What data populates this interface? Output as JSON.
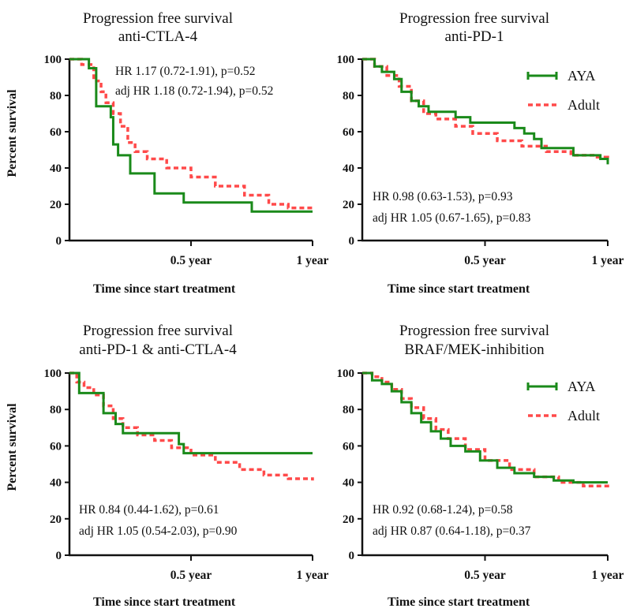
{
  "figure": {
    "y_axis_label": "Percent survival",
    "x_axis_label": "Time since start treatment",
    "legend": {
      "aya_label": "AYA",
      "adult_label": "Adult"
    },
    "colors": {
      "aya": "#1a8a1a",
      "adult": "#ff4a4a",
      "axis": "#111111"
    }
  },
  "panels": [
    {
      "title_line1": "Progression free survival",
      "title_line2": "anti-CTLA-4",
      "annotation_line1": "HR 1.17 (0.72-1.91), p=0.52",
      "annotation_line2": "adj  HR 1.18 (0.72-1.94), p=0.52"
    },
    {
      "title_line1": "Progression free survival",
      "title_line2": "anti-PD-1",
      "annotation_line1": "HR 0.98 (0.63-1.53), p=0.93",
      "annotation_line2": "adj  HR 1.05 (0.67-1.65), p=0.83"
    },
    {
      "title_line1": "Progression free survival",
      "title_line2": "anti-PD-1 & anti-CTLA-4",
      "annotation_line1": "HR 0.84 (0.44-1.62), p=0.61",
      "annotation_line2": "adj  HR 1.05 (0.54-2.03), p=0.90"
    },
    {
      "title_line1": "Progression free survival",
      "title_line2": "BRAF/MEK-inhibition",
      "annotation_line1": "HR 0.92 (0.68-1.24), p=0.58",
      "annotation_line2": "adj  HR 0.87 (0.64-1.18), p=0.37"
    }
  ],
  "chart_data": [
    {
      "type": "line",
      "title": "Progression free survival anti-CTLA-4",
      "xlabel": "Time since start treatment",
      "ylabel": "Percent survival",
      "xlim": [
        0,
        1
      ],
      "ylim": [
        0,
        100
      ],
      "x_ticks": [
        0.5,
        1
      ],
      "x_tick_labels": [
        "0.5 year",
        "1 year"
      ],
      "y_ticks": [
        0,
        20,
        40,
        60,
        80,
        100
      ],
      "legend": "none",
      "series": [
        {
          "name": "AYA",
          "style": "solid step",
          "x": [
            0,
            0.04,
            0.08,
            0.11,
            0.16,
            0.17,
            0.18,
            0.2,
            0.25,
            0.3,
            0.35,
            0.47,
            0.75,
            1.0
          ],
          "y": [
            100,
            100,
            95,
            74,
            74,
            68,
            53,
            47,
            37,
            37,
            26,
            21,
            16,
            16
          ]
        },
        {
          "name": "Adult",
          "style": "dashed step",
          "x": [
            0,
            0.05,
            0.1,
            0.13,
            0.15,
            0.18,
            0.21,
            0.24,
            0.27,
            0.32,
            0.4,
            0.5,
            0.6,
            0.72,
            0.82,
            0.9,
            1.0
          ],
          "y": [
            100,
            97,
            88,
            82,
            76,
            70,
            63,
            54,
            49,
            45,
            40,
            35,
            30,
            25,
            20,
            18,
            17
          ]
        }
      ]
    },
    {
      "type": "line",
      "title": "Progression free survival anti-PD-1",
      "xlabel": "Time since start treatment",
      "ylabel": "Percent survival",
      "xlim": [
        0,
        1
      ],
      "ylim": [
        0,
        100
      ],
      "x_ticks": [
        0.5,
        1
      ],
      "x_tick_labels": [
        "0.5 year",
        "1 year"
      ],
      "y_ticks": [
        0,
        20,
        40,
        60,
        80,
        100
      ],
      "legend": "top-right",
      "series": [
        {
          "name": "AYA",
          "style": "solid step",
          "x": [
            0,
            0.05,
            0.08,
            0.13,
            0.16,
            0.2,
            0.23,
            0.27,
            0.38,
            0.44,
            0.62,
            0.66,
            0.7,
            0.73,
            0.86,
            0.97,
            1.0
          ],
          "y": [
            100,
            96,
            93,
            89,
            82,
            77,
            74,
            71,
            68,
            65,
            62,
            59,
            56,
            51,
            47,
            45,
            42
          ]
        },
        {
          "name": "Adult",
          "style": "dashed step",
          "x": [
            0,
            0.05,
            0.1,
            0.15,
            0.2,
            0.25,
            0.3,
            0.38,
            0.45,
            0.55,
            0.65,
            0.75,
            0.85,
            0.95,
            1.0
          ],
          "y": [
            100,
            96,
            91,
            85,
            77,
            70,
            67,
            63,
            59,
            55,
            52,
            49,
            47,
            46,
            45
          ]
        }
      ]
    },
    {
      "type": "line",
      "title": "Progression free survival anti-PD-1 & anti-CTLA-4",
      "xlabel": "Time since start treatment",
      "ylabel": "Percent survival",
      "xlim": [
        0,
        1
      ],
      "ylim": [
        0,
        100
      ],
      "x_ticks": [
        0.5,
        1
      ],
      "x_tick_labels": [
        "0.5 year",
        "1 year"
      ],
      "y_ticks": [
        0,
        20,
        40,
        60,
        80,
        100
      ],
      "legend": "none",
      "series": [
        {
          "name": "AYA",
          "style": "solid step",
          "x": [
            0,
            0.04,
            0.12,
            0.14,
            0.19,
            0.22,
            0.45,
            0.47,
            1.0
          ],
          "y": [
            100,
            89,
            89,
            78,
            72,
            67,
            61,
            56,
            56
          ]
        },
        {
          "name": "Adult",
          "style": "dashed step",
          "x": [
            0,
            0.03,
            0.06,
            0.1,
            0.14,
            0.18,
            0.22,
            0.28,
            0.35,
            0.42,
            0.5,
            0.6,
            0.7,
            0.8,
            0.9,
            1.0
          ],
          "y": [
            100,
            95,
            92,
            88,
            82,
            75,
            70,
            66,
            63,
            59,
            55,
            51,
            47,
            44,
            42,
            41
          ]
        }
      ]
    },
    {
      "type": "line",
      "title": "Progression free survival BRAF/MEK-inhibition",
      "xlabel": "Time since start treatment",
      "ylabel": "Percent survival",
      "xlim": [
        0,
        1
      ],
      "ylim": [
        0,
        100
      ],
      "x_ticks": [
        0.5,
        1
      ],
      "x_tick_labels": [
        "0.5 year",
        "1 year"
      ],
      "y_ticks": [
        0,
        20,
        40,
        60,
        80,
        100
      ],
      "legend": "top-right",
      "series": [
        {
          "name": "AYA",
          "style": "solid step",
          "x": [
            0,
            0.04,
            0.08,
            0.12,
            0.16,
            0.2,
            0.24,
            0.28,
            0.32,
            0.36,
            0.42,
            0.48,
            0.55,
            0.62,
            0.7,
            0.78,
            0.86,
            1.0
          ],
          "y": [
            100,
            96,
            94,
            90,
            84,
            78,
            73,
            68,
            64,
            60,
            57,
            52,
            48,
            45,
            43,
            41,
            40,
            40
          ]
        },
        {
          "name": "Adult",
          "style": "dashed step",
          "x": [
            0,
            0.04,
            0.08,
            0.12,
            0.16,
            0.2,
            0.25,
            0.3,
            0.35,
            0.42,
            0.5,
            0.6,
            0.7,
            0.8,
            0.9,
            1.0
          ],
          "y": [
            100,
            98,
            95,
            91,
            86,
            81,
            75,
            69,
            64,
            58,
            52,
            47,
            43,
            40,
            38,
            37
          ]
        }
      ]
    }
  ]
}
